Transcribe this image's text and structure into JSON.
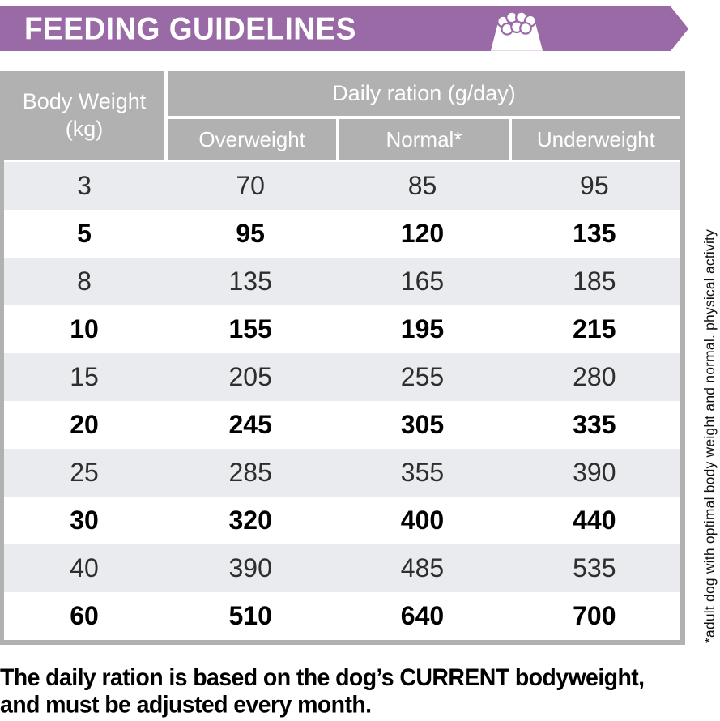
{
  "banner": {
    "title": "FEEDING GUIDELINES",
    "color": "#9a6aa6"
  },
  "table": {
    "corner_header": "Body Weight (kg)",
    "group_header": "Daily ration (g/day)",
    "columns": [
      "Overweight",
      "Normal*",
      "Underweight"
    ],
    "rows": [
      {
        "weight": "3",
        "overweight": "70",
        "normal": "85",
        "underweight": "95"
      },
      {
        "weight": "5",
        "overweight": "95",
        "normal": "120",
        "underweight": "135"
      },
      {
        "weight": "8",
        "overweight": "135",
        "normal": "165",
        "underweight": "185"
      },
      {
        "weight": "10",
        "overweight": "155",
        "normal": "195",
        "underweight": "215"
      },
      {
        "weight": "15",
        "overweight": "205",
        "normal": "255",
        "underweight": "280"
      },
      {
        "weight": "20",
        "overweight": "245",
        "normal": "305",
        "underweight": "335"
      },
      {
        "weight": "25",
        "overweight": "285",
        "normal": "355",
        "underweight": "390"
      },
      {
        "weight": "30",
        "overweight": "320",
        "normal": "400",
        "underweight": "440"
      },
      {
        "weight": "40",
        "overweight": "390",
        "normal": "485",
        "underweight": "535"
      },
      {
        "weight": "60",
        "overweight": "510",
        "normal": "640",
        "underweight": "700"
      }
    ],
    "header_bg": "#b1b1b1",
    "shaded_row_bg": "#e9ebee"
  },
  "side_note": "*adult dog with optimal body weight and normal. physical activity",
  "footer": {
    "line1": "The daily ration is based on the dog’s CURRENT bodyweight,",
    "line2": "and must be adjusted every month."
  }
}
